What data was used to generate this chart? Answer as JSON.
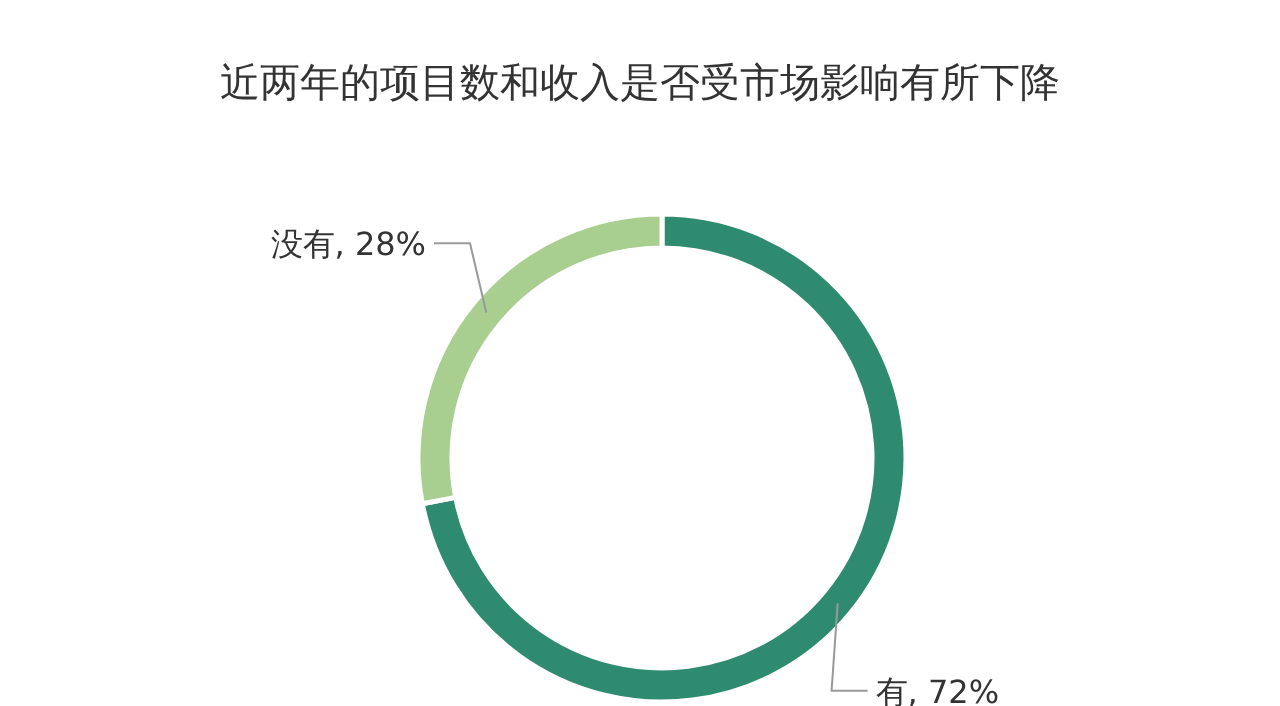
{
  "chart_data": {
    "type": "donut",
    "title": "近两年的项目数和收入是否受市场影响有所下降",
    "categories": [
      "有",
      "没有"
    ],
    "values": [
      72,
      28
    ],
    "colors": [
      "#2e8b6f",
      "#a8cf8f"
    ],
    "value_labels": [
      "72%",
      "28%"
    ],
    "legend": false
  }
}
